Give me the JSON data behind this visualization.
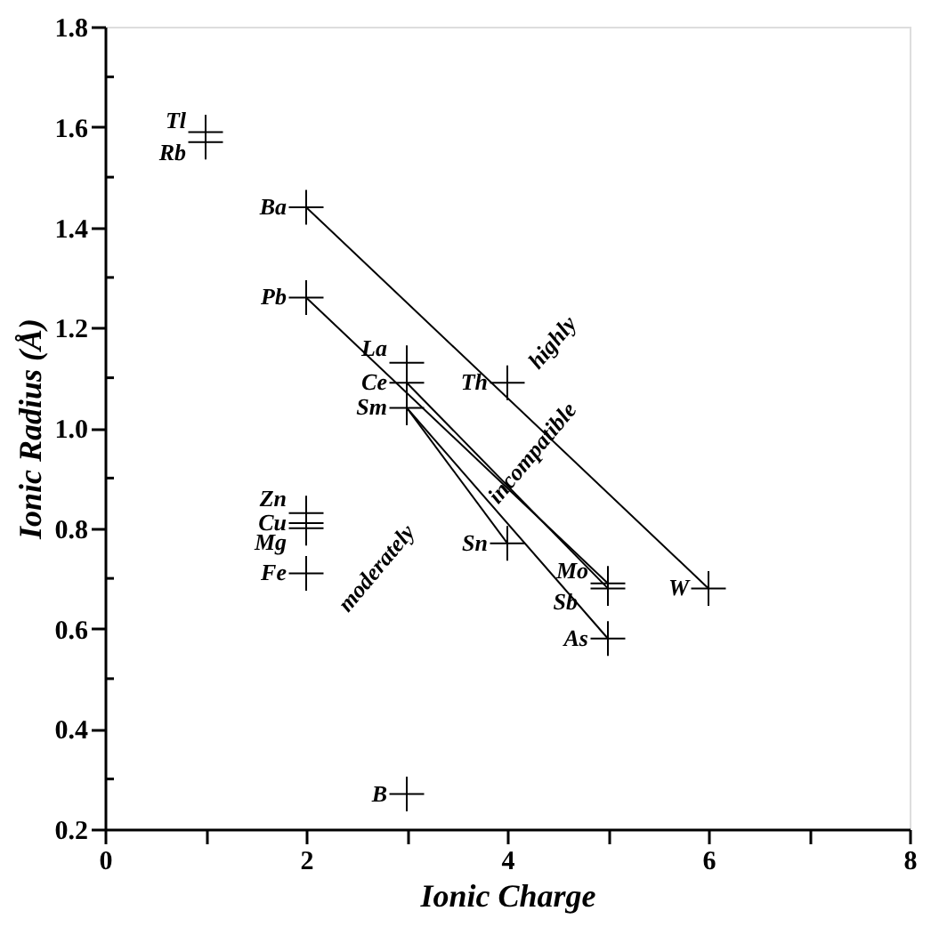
{
  "chart_data": {
    "type": "scatter",
    "xlabel": "Ionic Charge",
    "ylabel": "Ionic Radius (Å)",
    "marker": "cross",
    "grid": false,
    "legend": false,
    "xlim": [
      0,
      8
    ],
    "xticks": [
      0,
      {
        "value": 1,
        "label": null
      },
      2,
      {
        "value": 3,
        "label": null
      },
      4,
      {
        "value": 5,
        "label": null
      },
      6,
      {
        "value": 7,
        "label": null
      },
      8
    ],
    "ylim": [
      0.2,
      1.8
    ],
    "yticks": [
      0.2,
      {
        "value": 0.3,
        "label": null
      },
      0.4,
      {
        "value": 0.5,
        "label": null
      },
      0.6,
      {
        "value": 0.7,
        "label": null
      },
      0.8,
      {
        "value": 0.9,
        "label": null
      },
      {
        "value": 1.0,
        "label": "1.0"
      },
      {
        "value": 1.1,
        "label": null
      },
      1.2,
      {
        "value": 1.3,
        "label": null
      },
      1.4,
      {
        "value": 1.5,
        "label": null
      },
      1.6,
      {
        "value": 1.7,
        "label": null
      },
      1.8
    ],
    "annotations": [
      "highly",
      "incompatible",
      "moderately"
    ],
    "series": [
      {
        "type": "line",
        "marker": "none",
        "color": "#000000",
        "x": [
          2,
          6
        ],
        "values": [
          1.44,
          0.68
        ]
      },
      {
        "type": "line",
        "marker": "none",
        "color": "#000000",
        "x": [
          2,
          5
        ],
        "values": [
          1.26,
          0.69
        ]
      },
      {
        "type": "line",
        "marker": "none",
        "color": "#000000",
        "x": [
          3,
          5
        ],
        "values": [
          1.09,
          0.68
        ]
      },
      {
        "type": "line",
        "marker": "none",
        "color": "#000000",
        "x": [
          3,
          4
        ],
        "values": [
          1.04,
          0.77
        ]
      },
      {
        "type": "line",
        "marker": "none",
        "color": "#000000",
        "x": [
          3,
          5
        ],
        "values": [
          1.04,
          0.58
        ]
      },
      {
        "name": "Tl",
        "color": "#000000",
        "x": [
          1
        ],
        "values": [
          1.59
        ]
      },
      {
        "name": "Rb",
        "color": "#000000",
        "x": [
          1
        ],
        "values": [
          1.57
        ]
      },
      {
        "name": "Ba",
        "color": "#000000",
        "x": [
          2
        ],
        "values": [
          1.44
        ]
      },
      {
        "name": "Pb",
        "color": "#000000",
        "x": [
          2
        ],
        "values": [
          1.26
        ]
      },
      {
        "name": "La",
        "color": "#000000",
        "x": [
          3
        ],
        "values": [
          1.13
        ]
      },
      {
        "name": "Ce",
        "color": "#000000",
        "x": [
          3
        ],
        "values": [
          1.09
        ]
      },
      {
        "name": "Sm",
        "color": "#000000",
        "x": [
          3
        ],
        "values": [
          1.04
        ]
      },
      {
        "name": "Th",
        "color": "#000000",
        "x": [
          4
        ],
        "values": [
          1.09
        ]
      },
      {
        "name": "Zn",
        "color": "#000000",
        "x": [
          2
        ],
        "values": [
          0.83
        ]
      },
      {
        "name": "Cu",
        "color": "#000000",
        "x": [
          2
        ],
        "values": [
          0.81
        ]
      },
      {
        "name": "Mg",
        "color": "#000000",
        "x": [
          2
        ],
        "values": [
          0.8
        ]
      },
      {
        "name": "Fe",
        "color": "#000000",
        "x": [
          2
        ],
        "values": [
          0.71
        ]
      },
      {
        "name": "B",
        "color": "#000000",
        "x": [
          3
        ],
        "values": [
          0.27
        ]
      },
      {
        "name": "Sn",
        "color": "#000000",
        "x": [
          4
        ],
        "values": [
          0.77
        ]
      },
      {
        "name": "Mo",
        "color": "#000000",
        "x": [
          5
        ],
        "values": [
          0.69
        ]
      },
      {
        "name": "Sb",
        "color": "#000000",
        "x": [
          5
        ],
        "values": [
          0.68
        ]
      },
      {
        "name": "As",
        "color": "#000000",
        "x": [
          5
        ],
        "values": [
          0.58
        ]
      },
      {
        "name": "W",
        "color": "#000000",
        "x": [
          6
        ],
        "values": [
          0.68
        ]
      }
    ]
  }
}
